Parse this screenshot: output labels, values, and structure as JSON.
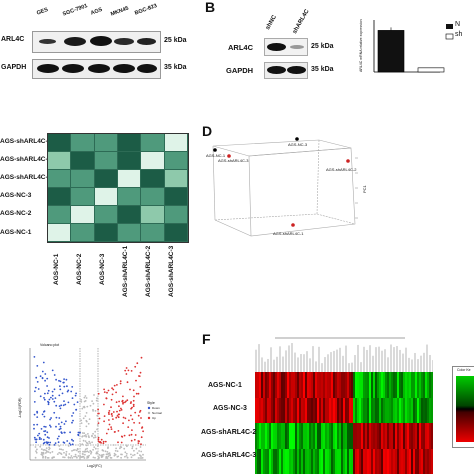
{
  "panelA": {
    "samples": [
      "GES",
      "SGC-7901",
      "AGS",
      "MKN45",
      "BGC-823"
    ],
    "row1_label": "ARL4C",
    "row2_label": "GAPDH",
    "size1": "25 kDa",
    "size2": "35 kDa"
  },
  "panelB": {
    "letter": "B",
    "samples": [
      "shNC",
      "shARL4C"
    ],
    "row1_label": "ARL4C",
    "row2_label": "GAPDH",
    "size1": "25 kDa",
    "size2": "35 kDa",
    "ylabel": "ARL4C mRNA relative expression",
    "legend": [
      "N",
      "sh"
    ],
    "chart_data": {
      "type": "bar",
      "categories": [
        "shNC",
        "shARL4C"
      ],
      "values": [
        1.0,
        0.1
      ],
      "ylim": [
        0,
        1.25
      ]
    }
  },
  "panelC": {
    "rows": [
      "AGS-shARL4C-3",
      "AGS-shARL4C-2",
      "AGS-shARL4C-1",
      "AGS-NC-3",
      "AGS-NC-2",
      "AGS-NC-1"
    ],
    "cols": [
      "AGS-NC-1",
      "AGS-NC-2",
      "AGS-NC-3",
      "AGS-shARL4C-1",
      "AGS-shARL4C-2",
      "AGS-shARL4C-3"
    ]
  },
  "panelD": {
    "letter": "D",
    "points": [
      {
        "label": "AGS-NC-1",
        "color": "#000000"
      },
      {
        "label": "AGS-shARL4C-3",
        "color": "#cc2222"
      },
      {
        "label": "AGS-NC-3",
        "color": "#000000"
      },
      {
        "label": "AGS-shARL4C-2",
        "color": "#cc2222"
      },
      {
        "label": "AGS-shARL4C-1",
        "color": "#cc2222"
      }
    ],
    "zlabel": "PC1"
  },
  "panelE": {
    "title": "Volcano plot",
    "ylabel": "-Log10(FDR)",
    "xlabel": "Log2(FC)",
    "legend_title": "Style",
    "legend": [
      "Down",
      "Normal",
      "Up"
    ],
    "colors": {
      "down": "#3355cc",
      "normal": "#bbbbbb",
      "up": "#dd3333"
    }
  },
  "panelF": {
    "letter": "F",
    "rows": [
      "AGS-NC-1",
      "AGS-NC-3",
      "AGS-shARL4C-2",
      "AGS-shARL4C-3"
    ],
    "legend_title": "Color Ke"
  }
}
